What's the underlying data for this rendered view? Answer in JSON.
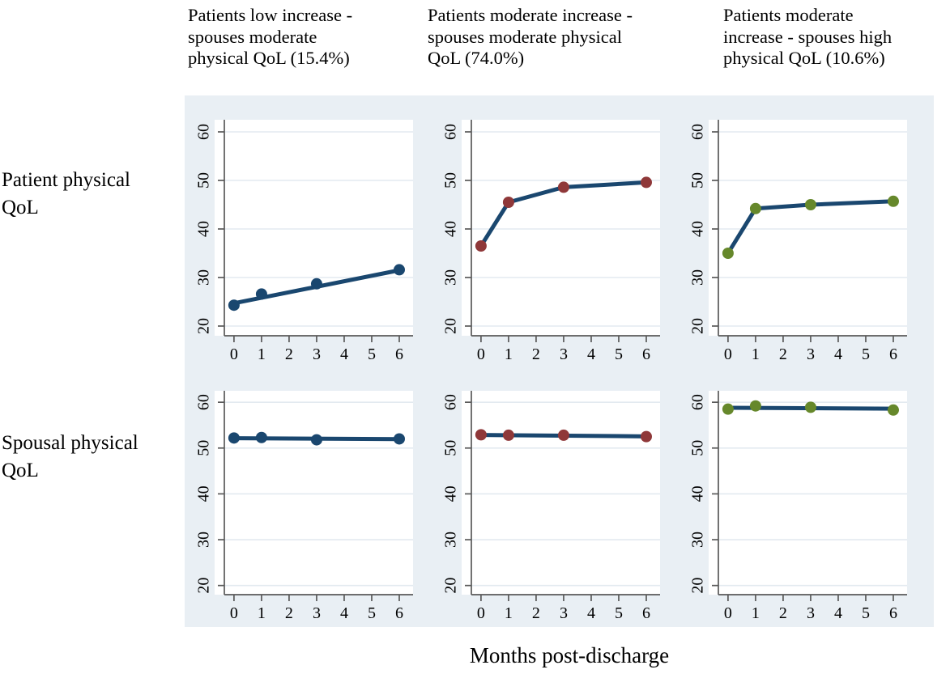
{
  "figure": {
    "column_titles": [
      "Patients low increase -\nspouses moderate\nphysical QoL (15.4%)",
      "Patients moderate increase -\nspouses moderate physical\nQoL (74.0%)",
      "Patients moderate\nincrease - spouses high\nphysical QoL (10.6%)"
    ],
    "row_labels": [
      "Patient physical\nQoL",
      "Spousal physical\nQoL"
    ],
    "x_axis_title": "Months post-discharge"
  },
  "colors": {
    "navy": "#1a476f",
    "maroon": "#8f3839",
    "olive": "#66882b",
    "line": "#1a476f",
    "figure_bg": "#e9eff4",
    "plot_bg": "#ffffff",
    "grid": "#e3eaf0",
    "axis": "#5a5a5a",
    "tick_label": "#000000"
  },
  "chart_data": {
    "type": "line",
    "title": "",
    "xlabel": "Months post-discharge",
    "ylabel": "",
    "x_ticks": [
      0,
      1,
      2,
      3,
      4,
      5,
      6
    ],
    "y_ticks": [
      20,
      30,
      40,
      50,
      60
    ],
    "x_range": [
      -0.35,
      6.5
    ],
    "y_range": [
      18,
      62.5
    ],
    "grid": "horizontal",
    "legend": "none",
    "measurement_x": [
      0,
      1,
      3,
      6
    ],
    "row_variables": [
      "Patient physical QoL",
      "Spousal physical QoL"
    ],
    "class_columns": [
      "Patients low increase - spouses moderate physical QoL (15.4%)",
      "Patients moderate increase - spouses moderate physical QoL (74.0%)",
      "Patients moderate increase - spouses high physical QoL (10.6%)"
    ],
    "panels": [
      {
        "row": 0,
        "col": 0,
        "series_color": "navy",
        "marker_x": [
          0,
          1,
          3,
          6
        ],
        "marker_y": [
          24.3,
          26.6,
          28.7,
          31.6
        ],
        "line_x": [
          0,
          6
        ],
        "line_y": [
          24.7,
          31.5
        ]
      },
      {
        "row": 0,
        "col": 1,
        "series_color": "maroon",
        "marker_x": [
          0,
          1,
          3,
          6
        ],
        "marker_y": [
          36.5,
          45.5,
          48.6,
          49.6
        ],
        "line_x": [
          0,
          1,
          3,
          6
        ],
        "line_y": [
          36.5,
          45.5,
          48.6,
          49.6
        ]
      },
      {
        "row": 0,
        "col": 2,
        "series_color": "olive",
        "marker_x": [
          0,
          1,
          3,
          6
        ],
        "marker_y": [
          35.0,
          44.2,
          45.0,
          45.7
        ],
        "line_x": [
          0,
          1,
          3,
          6
        ],
        "line_y": [
          35.0,
          44.2,
          45.0,
          45.7
        ]
      },
      {
        "row": 1,
        "col": 0,
        "series_color": "navy",
        "marker_x": [
          0,
          1,
          3,
          6
        ],
        "marker_y": [
          52.2,
          52.3,
          51.8,
          52.0
        ],
        "line_x": [
          0,
          6
        ],
        "line_y": [
          52.15,
          51.95
        ]
      },
      {
        "row": 1,
        "col": 1,
        "series_color": "maroon",
        "marker_x": [
          0,
          1,
          3,
          6
        ],
        "marker_y": [
          52.9,
          52.8,
          52.8,
          52.5
        ],
        "line_x": [
          0,
          6
        ],
        "line_y": [
          52.85,
          52.55
        ]
      },
      {
        "row": 1,
        "col": 2,
        "series_color": "olive",
        "marker_x": [
          0,
          1,
          3,
          6
        ],
        "marker_y": [
          58.5,
          59.2,
          58.9,
          58.3
        ],
        "line_x": [
          0,
          6
        ],
        "line_y": [
          58.8,
          58.6
        ]
      }
    ]
  }
}
